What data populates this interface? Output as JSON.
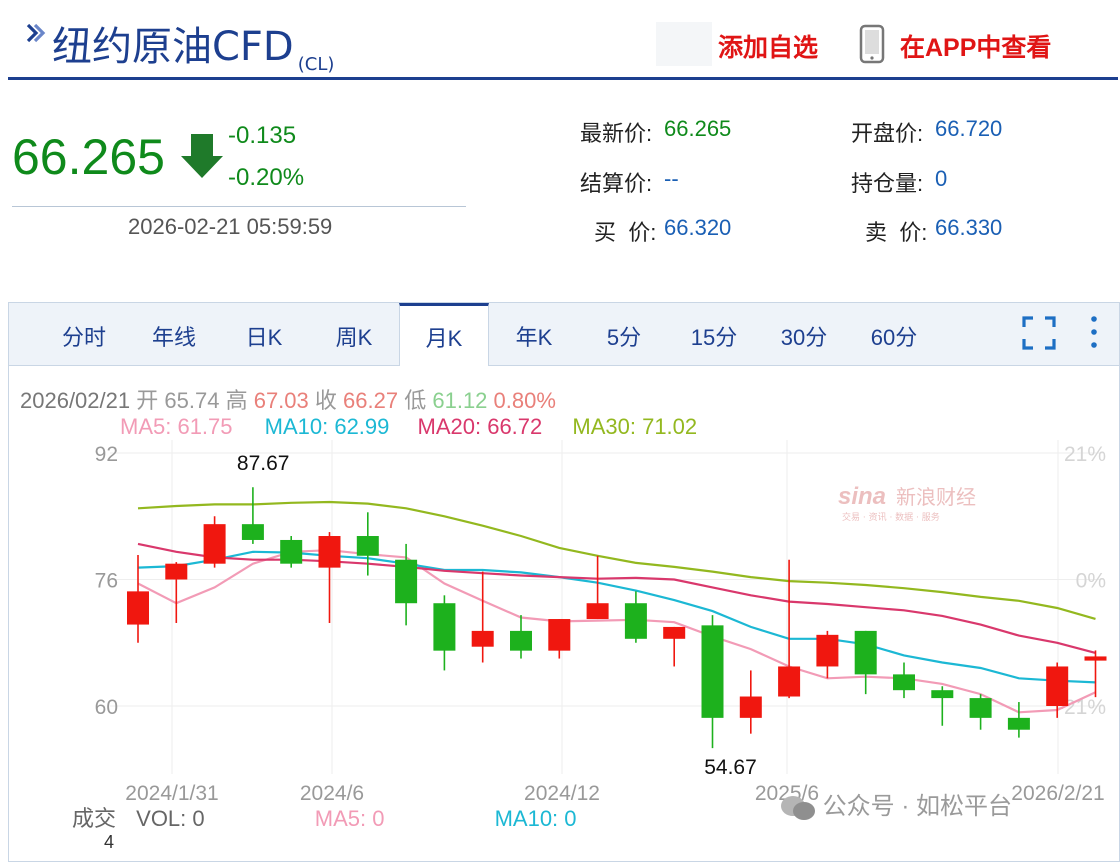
{
  "header": {
    "title": "纽约原油CFD",
    "code": "(CL)",
    "add_watchlist": "添加自选",
    "view_in_app": "在APP中查看",
    "accent_color": "#1d3f8f",
    "action_color": "#e01515"
  },
  "price": {
    "last": "66.265",
    "change": "-0.135",
    "change_pct": "-0.20%",
    "timestamp": "2026-02-21 05:59:59",
    "direction_icon": "down-arrow-icon",
    "down_color": "#0f8a1b"
  },
  "quote": {
    "latest_label": "最新价:",
    "latest_value": "66.265",
    "open_label": "开盘价:",
    "open_value": "66.720",
    "settle_label": "结算价:",
    "settle_value": "--",
    "oi_label": "持仓量:",
    "oi_value": "0",
    "bid_label": "买  价:",
    "bid_value": "66.320",
    "ask_label": "卖  价:",
    "ask_value": "66.330"
  },
  "tabs": [
    "分时",
    "年线",
    "日K",
    "周K",
    "月K",
    "年K",
    "5分",
    "15分",
    "30分",
    "60分"
  ],
  "active_tab": "月K",
  "tab_icons": [
    "fullscreen-icon",
    "more-vertical-icon"
  ],
  "ohlc": {
    "date": "2026/02/21",
    "open_label": "开",
    "open": "65.74",
    "high_label": "高",
    "high": "67.03",
    "close_label": "收",
    "close": "66.27",
    "low_label": "低",
    "low": "61.12",
    "pct": "0.80%"
  },
  "ma_legend": {
    "ma5": "MA5: 61.75",
    "ma10": "MA10: 62.99",
    "ma20": "MA20: 66.72",
    "ma30": "MA30: 71.02"
  },
  "volume": {
    "label": "成交",
    "vol": "VOL: 0",
    "ma5": "MA5: 0",
    "ma10": "MA10: 0",
    "axis_top": "4"
  },
  "watermark": {
    "brand": "新浪财经",
    "brand_sub": "交易 · 资讯 · 数据 · 服务",
    "overlay": "公众号 · 如松平台"
  },
  "chart_data": {
    "type": "candlestick",
    "y_ticks": [
      "92",
      "76",
      "60"
    ],
    "y_right_ticks": [
      "21%",
      "0%",
      "-21%"
    ],
    "x_tick_labels": [
      "2024/1/31",
      "2024/6",
      "2024/12",
      "2025/6",
      "2026/2/21"
    ],
    "annotations": [
      "87.67",
      "54.67"
    ],
    "ylim": [
      50,
      95
    ],
    "up_color": "#f0170f",
    "down_color": "#1db11d",
    "candles": [
      {
        "o": 70.3,
        "h": 79.1,
        "l": 68.0,
        "c": 74.5
      },
      {
        "o": 76.0,
        "h": 78.2,
        "l": 70.5,
        "c": 78.0
      },
      {
        "o": 78.0,
        "h": 84.0,
        "l": 77.5,
        "c": 83.0
      },
      {
        "o": 83.0,
        "h": 87.67,
        "l": 80.5,
        "c": 81.0
      },
      {
        "o": 81.0,
        "h": 81.5,
        "l": 77.5,
        "c": 78.0
      },
      {
        "o": 77.5,
        "h": 82.0,
        "l": 70.5,
        "c": 81.5
      },
      {
        "o": 81.5,
        "h": 84.5,
        "l": 76.5,
        "c": 79.0
      },
      {
        "o": 78.5,
        "h": 80.5,
        "l": 70.2,
        "c": 73.0
      },
      {
        "o": 73.0,
        "h": 74.0,
        "l": 64.5,
        "c": 67.0
      },
      {
        "o": 67.5,
        "h": 77.0,
        "l": 65.5,
        "c": 69.5
      },
      {
        "o": 69.5,
        "h": 71.5,
        "l": 66.0,
        "c": 67.0
      },
      {
        "o": 67.0,
        "h": 71.0,
        "l": 66.0,
        "c": 71.0
      },
      {
        "o": 71.0,
        "h": 79.0,
        "l": 71.0,
        "c": 73.0
      },
      {
        "o": 73.0,
        "h": 74.5,
        "l": 68.0,
        "c": 68.5
      },
      {
        "o": 68.5,
        "h": 70.0,
        "l": 65.0,
        "c": 70.0
      },
      {
        "o": 70.2,
        "h": 71.5,
        "l": 54.67,
        "c": 58.5
      },
      {
        "o": 58.5,
        "h": 64.5,
        "l": 56.5,
        "c": 61.2
      },
      {
        "o": 61.2,
        "h": 78.5,
        "l": 61.0,
        "c": 65.0
      },
      {
        "o": 65.0,
        "h": 69.5,
        "l": 63.5,
        "c": 69.0
      },
      {
        "o": 69.5,
        "h": 69.5,
        "l": 61.5,
        "c": 64.0
      },
      {
        "o": 64.0,
        "h": 65.5,
        "l": 61.0,
        "c": 62.0
      },
      {
        "o": 62.0,
        "h": 62.5,
        "l": 57.5,
        "c": 61.0
      },
      {
        "o": 61.0,
        "h": 61.5,
        "l": 57.0,
        "c": 58.5
      },
      {
        "o": 58.5,
        "h": 60.5,
        "l": 56.0,
        "c": 57.0
      },
      {
        "o": 60.0,
        "h": 65.5,
        "l": 58.5,
        "c": 65.0
      },
      {
        "o": 65.74,
        "h": 67.03,
        "l": 61.12,
        "c": 66.27
      }
    ],
    "series": [
      {
        "name": "MA5",
        "color": "#f29bb6",
        "values": [
          75.5,
          73.0,
          75.0,
          78.0,
          79.5,
          79.7,
          79.2,
          78.8,
          75.5,
          73.3,
          71.2,
          70.7,
          70.8,
          70.9,
          70.6,
          68.8,
          67.2,
          65.0,
          63.5,
          63.7,
          63.5,
          62.8,
          61.5,
          59.2,
          59.5,
          61.75
        ]
      },
      {
        "name": "MA10",
        "color": "#1cb8d4",
        "values": [
          77.5,
          77.7,
          78.5,
          79.5,
          79.4,
          79.0,
          78.7,
          78.0,
          77.2,
          77.2,
          76.9,
          76.3,
          75.6,
          74.6,
          73.4,
          72.0,
          70.0,
          68.5,
          68.5,
          67.8,
          66.4,
          65.5,
          64.8,
          63.5,
          63.2,
          62.99
        ]
      },
      {
        "name": "MA20",
        "color": "#d9386c",
        "values": [
          80.5,
          79.5,
          78.8,
          78.5,
          78.5,
          78.3,
          78.0,
          77.6,
          77.1,
          76.8,
          76.5,
          76.3,
          76.1,
          76.2,
          76.0,
          75.0,
          74.0,
          73.2,
          72.9,
          72.5,
          72.1,
          71.4,
          70.3,
          68.9,
          68.0,
          66.72
        ]
      },
      {
        "name": "MA30",
        "color": "#93b81f",
        "values": [
          85.0,
          85.3,
          85.5,
          85.5,
          85.7,
          85.8,
          85.6,
          85.0,
          84.0,
          82.8,
          81.5,
          80.0,
          79.0,
          78.1,
          77.6,
          77.0,
          76.3,
          75.8,
          75.6,
          75.3,
          74.9,
          74.4,
          73.8,
          73.3,
          72.4,
          71.02
        ]
      }
    ]
  }
}
